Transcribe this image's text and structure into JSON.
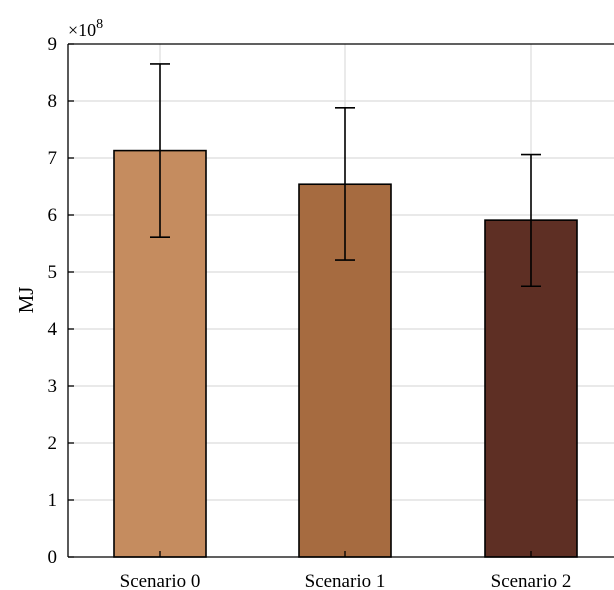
{
  "chart_data": {
    "type": "bar",
    "categories": [
      "Scenario 0",
      "Scenario 1",
      "Scenario 2"
    ],
    "values": [
      7.13,
      6.54,
      5.91
    ],
    "error_low": [
      5.61,
      5.21,
      4.75
    ],
    "error_high": [
      8.65,
      7.88,
      7.06
    ],
    "bar_colors": [
      "#c58c5f",
      "#a66b40",
      "#5e2f24"
    ],
    "ylabel": "MJ",
    "xlabel": "",
    "title": "",
    "y_exponent_label": "×10",
    "y_exponent_power": "8",
    "ylim": [
      0,
      9
    ],
    "yticks": [
      "0",
      "1",
      "2",
      "3",
      "4",
      "5",
      "6",
      "7",
      "8",
      "9"
    ],
    "grid": true
  }
}
